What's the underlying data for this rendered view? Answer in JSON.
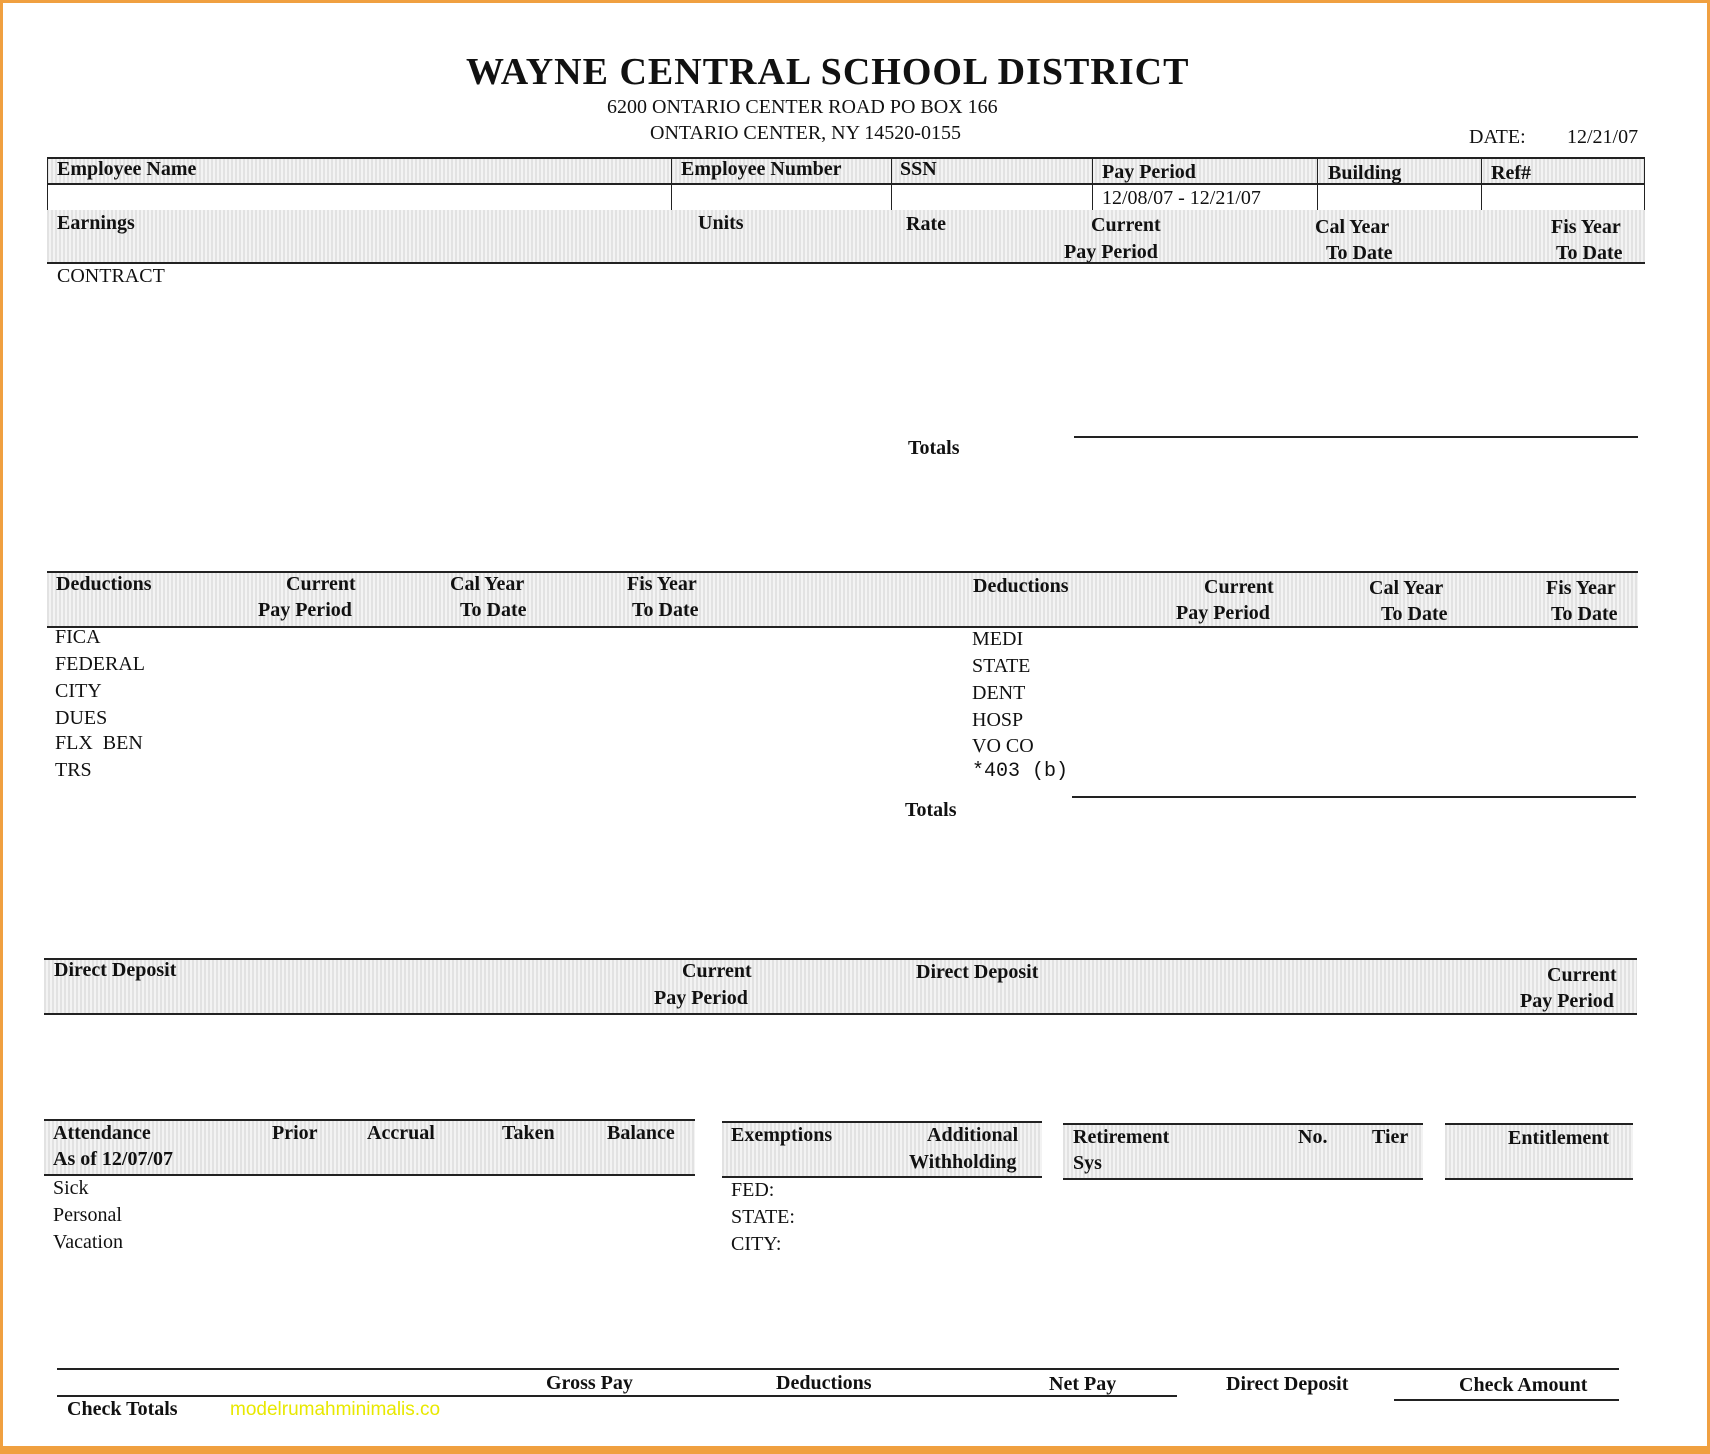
{
  "header": {
    "title": "WAYNE CENTRAL SCHOOL DISTRICT",
    "address1": "6200 ONTARIO CENTER ROAD PO BOX 166",
    "address2": "ONTARIO CENTER, NY 14520-0155",
    "date_label": "DATE:",
    "date_value": "12/21/07"
  },
  "info_table": {
    "columns": [
      "Employee Name",
      "Employee Number",
      "SSN",
      "Pay Period",
      "Building",
      "Ref#"
    ],
    "values": [
      "",
      "",
      "",
      "12/08/07 - 12/21/07",
      "",
      ""
    ]
  },
  "earnings": {
    "headers": [
      "Earnings",
      "Units",
      "Rate",
      "Current",
      "Pay Period",
      "Cal Year",
      "To Date",
      "Fis Year",
      "To Date"
    ],
    "items": [
      "CONTRACT"
    ],
    "totals_label": "Totals"
  },
  "deductions": {
    "headers": [
      "Deductions",
      "Current",
      "Pay Period",
      "Cal Year",
      "To Date",
      "Fis Year",
      "To Date"
    ],
    "left_items": [
      "FICA",
      "FEDERAL",
      "CITY",
      "DUES",
      "FLX  BEN",
      "TRS"
    ],
    "right_items": [
      "MEDI",
      "STATE",
      "DENT",
      "HOSP",
      "VO CO",
      "*403 (b)"
    ],
    "totals_label": "Totals"
  },
  "direct_deposit": {
    "headers": [
      "Direct Deposit",
      "Current",
      "Pay Period"
    ]
  },
  "attendance": {
    "headers": [
      "Attendance",
      "As of 12/07/07",
      "Prior",
      "Accrual",
      "Taken",
      "Balance"
    ],
    "items": [
      "Sick",
      "Personal",
      "Vacation"
    ]
  },
  "exemptions": {
    "headers": [
      "Exemptions",
      "Additional",
      "Withholding"
    ],
    "items": [
      "FED:",
      "STATE:",
      "CITY:"
    ]
  },
  "retirement": {
    "headers": [
      "Retirement",
      "Sys",
      "No.",
      "Tier"
    ]
  },
  "entitlement": {
    "header": "Entitlement"
  },
  "check_totals": {
    "label": "Check Totals",
    "columns": [
      "Gross Pay",
      "Deductions",
      "Net Pay",
      "Direct Deposit",
      "Check Amount"
    ]
  },
  "watermark": "modelrumahminimalis.co",
  "colors": {
    "frame": "#f0a040",
    "watermark": "#e8e800"
  }
}
